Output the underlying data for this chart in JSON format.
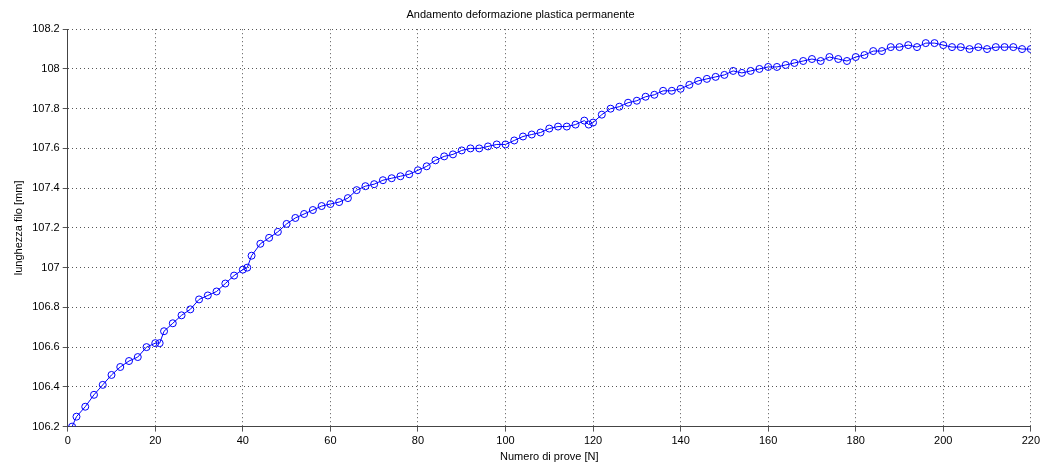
{
  "chart_data": {
    "type": "line",
    "title": "Andamento deformazione plastica permanente",
    "xlabel": "Numero di prove [N]",
    "ylabel": "lunghezza filo [mm]",
    "xlim": [
      0,
      220
    ],
    "xticks": [
      0,
      20,
      40,
      60,
      80,
      100,
      120,
      140,
      160,
      180,
      200,
      220
    ],
    "ylim": [
      106.2,
      108.2
    ],
    "yticks": [
      106.2,
      106.4,
      106.6,
      106.8,
      107,
      107.2,
      107.4,
      107.6,
      107.8,
      108,
      108.2
    ],
    "grid": true,
    "marker": "circle",
    "line_style": "solid",
    "series": [
      {
        "color": "#0000ff",
        "x": [
          1,
          2,
          4,
          6,
          8,
          10,
          12,
          14,
          16,
          18,
          20,
          21,
          22,
          24,
          26,
          28,
          30,
          32,
          34,
          36,
          38,
          40,
          41,
          42,
          44,
          46,
          48,
          50,
          52,
          54,
          56,
          58,
          60,
          62,
          64,
          66,
          68,
          70,
          72,
          74,
          76,
          78,
          80,
          82,
          84,
          86,
          88,
          90,
          92,
          94,
          96,
          98,
          100,
          102,
          104,
          106,
          108,
          110,
          112,
          114,
          116,
          118,
          119,
          120,
          122,
          124,
          126,
          128,
          130,
          132,
          134,
          136,
          138,
          140,
          142,
          144,
          146,
          148,
          150,
          152,
          154,
          156,
          158,
          160,
          162,
          164,
          166,
          168,
          170,
          172,
          174,
          176,
          178,
          180,
          182,
          184,
          186,
          188,
          190,
          192,
          194,
          196,
          198,
          200,
          202,
          204,
          206,
          208,
          210,
          212,
          214,
          216,
          218,
          220
        ],
        "values": [
          106.2,
          106.25,
          106.3,
          106.36,
          106.41,
          106.46,
          106.5,
          106.53,
          106.55,
          106.6,
          106.62,
          106.62,
          106.68,
          106.72,
          106.76,
          106.79,
          106.84,
          106.86,
          106.88,
          106.92,
          106.96,
          106.99,
          107.0,
          107.06,
          107.12,
          107.15,
          107.18,
          107.22,
          107.25,
          107.27,
          107.29,
          107.31,
          107.32,
          107.33,
          107.35,
          107.39,
          107.41,
          107.42,
          107.44,
          107.45,
          107.46,
          107.47,
          107.49,
          107.51,
          107.54,
          107.56,
          107.57,
          107.59,
          107.6,
          107.6,
          107.61,
          107.62,
          107.62,
          107.64,
          107.66,
          107.67,
          107.68,
          107.7,
          107.71,
          107.71,
          107.72,
          107.74,
          107.72,
          107.73,
          107.77,
          107.8,
          107.81,
          107.83,
          107.84,
          107.86,
          107.87,
          107.89,
          107.89,
          107.9,
          107.92,
          107.94,
          107.95,
          107.96,
          107.97,
          107.99,
          107.98,
          107.99,
          108.0,
          108.01,
          108.01,
          108.02,
          108.03,
          108.04,
          108.05,
          108.04,
          108.06,
          108.05,
          108.04,
          108.06,
          108.07,
          108.09,
          108.09,
          108.11,
          108.11,
          108.12,
          108.11,
          108.13,
          108.13,
          108.12,
          108.11,
          108.11,
          108.1,
          108.11,
          108.1,
          108.11,
          108.11,
          108.11,
          108.1,
          108.1
        ]
      }
    ]
  }
}
